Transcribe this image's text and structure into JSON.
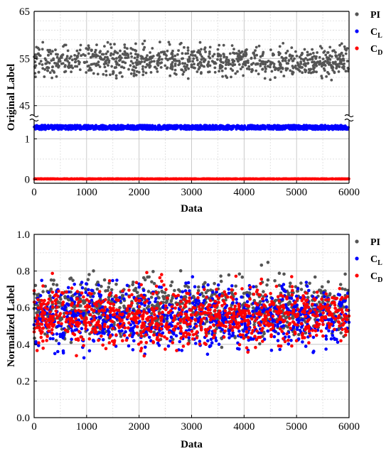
{
  "chart_data": [
    {
      "type": "scatter",
      "panel": "top",
      "xlabel": "Data",
      "ylabel": "Original Label",
      "xlim": [
        0,
        6000
      ],
      "x_ticks": [
        "0",
        "1000",
        "2000",
        "3000",
        "4000",
        "5000",
        "6000"
      ],
      "y_axis_break": true,
      "upper_segment": {
        "ylim": [
          43,
          65
        ],
        "y_ticks": [
          "45",
          "55",
          "65"
        ]
      },
      "lower_segment": {
        "ylim": [
          -0.1,
          1.45
        ],
        "y_ticks": [
          "0",
          "1"
        ]
      },
      "grid": true,
      "legend_placement": "right, outside top",
      "series": [
        {
          "name": "PI",
          "label_main": "PI",
          "label_sub": "",
          "color": "#555555",
          "n_points": 900,
          "y_range": [
            44.5,
            60
          ],
          "y_mean": 54.5
        },
        {
          "name": "CL",
          "label_main": "C",
          "label_sub": "L",
          "color": "#0000ff",
          "n_points": 1400,
          "y_range": [
            1.23,
            1.34
          ],
          "y_mean": 1.28
        },
        {
          "name": "CD",
          "label_main": "C",
          "label_sub": "D",
          "color": "#ff0000",
          "n_points": 1400,
          "y_range": [
            0.0,
            0.015
          ],
          "y_mean": 0.005
        }
      ]
    },
    {
      "type": "scatter",
      "panel": "bottom",
      "xlabel": "Data",
      "ylabel": "Normalized Label",
      "xlim": [
        0,
        6000
      ],
      "ylim": [
        0,
        1.0
      ],
      "x_ticks": [
        "0",
        "1000",
        "2000",
        "3000",
        "4000",
        "5000",
        "6000"
      ],
      "y_ticks": [
        "0.0",
        "0.2",
        "0.4",
        "0.6",
        "0.8",
        "1.0"
      ],
      "grid": true,
      "legend_placement": "right, outside top",
      "series": [
        {
          "name": "PI",
          "label_main": "PI",
          "label_sub": "",
          "color": "#555555",
          "n_points": 900,
          "y_range": [
            0,
            1
          ],
          "y_mean": 0.6
        },
        {
          "name": "CL",
          "label_main": "C",
          "label_sub": "L",
          "color": "#0000ff",
          "n_points": 900,
          "y_range": [
            0,
            1
          ],
          "y_mean": 0.55
        },
        {
          "name": "CD",
          "label_main": "C",
          "label_sub": "D",
          "color": "#ff0000",
          "n_points": 900,
          "y_range": [
            0,
            1
          ],
          "y_mean": 0.55
        }
      ]
    }
  ]
}
